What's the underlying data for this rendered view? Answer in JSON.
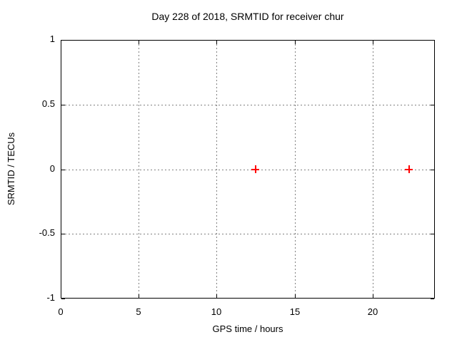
{
  "chart_data": {
    "type": "scatter",
    "title": "Day 228 of 2018, SRMTID for receiver chur",
    "xlabel": "GPS time / hours",
    "ylabel": "SRMTID / TECUs",
    "xlim": [
      0,
      24
    ],
    "ylim": [
      -1,
      1
    ],
    "xticks": [
      0,
      5,
      10,
      15,
      20
    ],
    "yticks": [
      -1,
      -0.5,
      0,
      0.5,
      1
    ],
    "grid": true,
    "legend": "none",
    "series": [
      {
        "marker": "plus",
        "color": "#ff0000",
        "points": [
          {
            "x": 12.5,
            "y": 0
          },
          {
            "x": 22.35,
            "y": 0
          }
        ]
      }
    ],
    "colors": {
      "axis": "#000000",
      "grid": "#808080",
      "background": "#ffffff",
      "text": "#000000"
    }
  }
}
